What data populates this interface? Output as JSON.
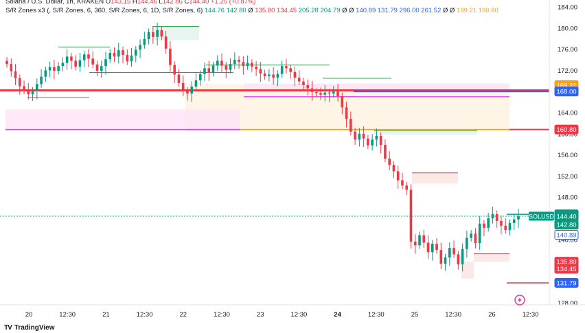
{
  "header": {
    "line1": {
      "title": "Solana / U.S. Dollar, 1h, KRAKEN",
      "o_label": "O",
      "o": "143.15",
      "h_label": "H",
      "h": "144.46",
      "l_label": "L",
      "l": "142.86",
      "c_label": "C",
      "c": "144.40",
      "change": "+1.25 (+0.87%)"
    },
    "line2": {
      "indicator": "S/R Zones x3 (, S/R Zones, 6, 360, S/R Zones, 6, 1D, S/R Zones, 6)",
      "vals": [
        {
          "v": "144.76",
          "c": "up"
        },
        {
          "v": "142.80",
          "c": "up"
        },
        {
          "v": "Ø",
          "c": "txt"
        },
        {
          "v": "135.80",
          "c": "dn"
        },
        {
          "v": "134.45",
          "c": "dn"
        },
        {
          "v": "205.28",
          "c": "up"
        },
        {
          "v": "204.79",
          "c": "up"
        },
        {
          "v": "Ø",
          "c": "txt"
        },
        {
          "v": "Ø",
          "c": "txt"
        },
        {
          "v": "140.89",
          "c": "blue"
        },
        {
          "v": "131.79",
          "c": "blue"
        },
        {
          "v": "296.00",
          "c": "blue"
        },
        {
          "v": "261.52",
          "c": "blue"
        },
        {
          "v": "Ø",
          "c": "txt"
        },
        {
          "v": "Ø",
          "c": "txt"
        },
        {
          "v": "169.21",
          "c": "orange"
        },
        {
          "v": "160.80",
          "c": "orange"
        }
      ]
    }
  },
  "chart_data": {
    "type": "candlestick",
    "symbol": "SOLUSD",
    "last_price": 144.4,
    "ylim": [
      126.0,
      185.0
    ],
    "y_ticks": [
      184.0,
      180.0,
      176.0,
      172.0,
      168.0,
      164.0,
      160.0,
      156.0,
      152.0,
      148.0,
      144.0,
      140.0,
      136.0,
      132.0,
      128.0
    ],
    "x_labels": [
      "20",
      "12:30",
      "21",
      "12:30",
      "22",
      "12:30",
      "23",
      "12:30",
      "24",
      "12:30",
      "25",
      "12:30",
      "26",
      "12:30"
    ],
    "x_labels_bold": [
      "24"
    ],
    "price_tags": [
      {
        "label": "169.21",
        "value": 169.21,
        "color": "#f7a21b"
      },
      {
        "label": "168.00",
        "value": 168.0,
        "color": "#2962ff"
      },
      {
        "label": "160.80",
        "value": 160.8,
        "color": "#f23645"
      },
      {
        "label": "144.76",
        "value": 144.76,
        "color": "#089981"
      },
      {
        "label": "144.40",
        "value": 144.4,
        "color": "#089981",
        "prefix": "SOLUSD"
      },
      {
        "label": "142.80",
        "value": 142.8,
        "color": "#089981"
      },
      {
        "label": "140.89",
        "value": 140.89,
        "color": "#2962ff",
        "outline": true
      },
      {
        "label": "135.80",
        "value": 135.8,
        "color": "#f23645"
      },
      {
        "label": "134.45",
        "value": 134.45,
        "color": "#f23645"
      },
      {
        "label": "131.79",
        "value": 131.79,
        "color": "#2962ff"
      }
    ],
    "candles_close": [
      173.2,
      171.8,
      170.5,
      169.0,
      168.2,
      167.5,
      168.1,
      169.4,
      170.8,
      172.0,
      172.6,
      171.9,
      172.8,
      173.4,
      174.6,
      173.8,
      172.7,
      173.9,
      175.0,
      174.2,
      173.1,
      171.9,
      172.8,
      174.1,
      175.3,
      174.6,
      175.8,
      174.9,
      173.7,
      174.8,
      175.9,
      176.8,
      177.9,
      179.2,
      178.3,
      179.6,
      178.4,
      176.1,
      173.0,
      171.2,
      169.6,
      168.1,
      167.6,
      168.9,
      170.1,
      171.3,
      172.4,
      171.6,
      172.9,
      173.8,
      172.9,
      172.1,
      173.2,
      174.0,
      173.6,
      172.8,
      173.4,
      172.7,
      172.2,
      171.4,
      170.9,
      171.2,
      170.6,
      171.3,
      172.8,
      172.4,
      171.7,
      170.6,
      169.9,
      169.2,
      168.6,
      167.9,
      167.7,
      167.4,
      167.8,
      167.6,
      168.0,
      167.1,
      165.0,
      162.8,
      160.4,
      158.9,
      160.0,
      159.1,
      157.8,
      158.9,
      159.6,
      157.9,
      155.3,
      154.1,
      152.9,
      151.2,
      150.2,
      149.4,
      139.6,
      138.9,
      140.8,
      139.4,
      137.6,
      139.2,
      138.0,
      135.4,
      136.6,
      138.4,
      137.2,
      135.3,
      138.2,
      140.3,
      141.1,
      139.3,
      143.0,
      142.2,
      144.0,
      144.8,
      143.5,
      142.6,
      141.8,
      143.1,
      143.8,
      144.4
    ]
  },
  "branding": {
    "name": "TradingView",
    "mark": "TV"
  }
}
